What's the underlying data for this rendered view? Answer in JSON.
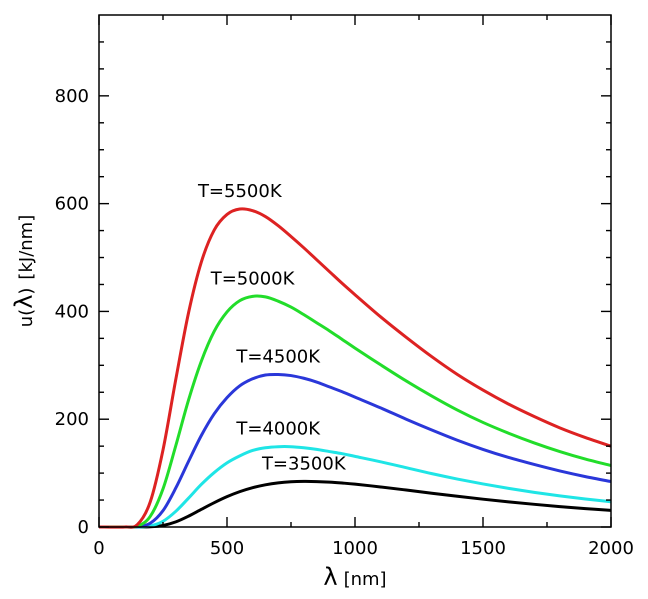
{
  "chart_data": {
    "type": "line",
    "title": "",
    "xlabel": {
      "symbol": "λ",
      "unit": "[nm]"
    },
    "ylabel": {
      "prefix": "u(",
      "symbol": "λ",
      "suffix": ")",
      "unit": "[kJ/nm]"
    },
    "xlim": [
      0,
      2000
    ],
    "ylim": [
      0,
      950
    ],
    "xticks": [
      0,
      500,
      1000,
      1500,
      2000
    ],
    "xtick_labels": [
      "0",
      "500",
      "1000",
      "1500",
      "2000"
    ],
    "yticks": [
      0,
      200,
      400,
      600,
      800
    ],
    "ytick_labels": [
      "0",
      "200",
      "400",
      "600",
      "800"
    ],
    "grid": false,
    "legend": "none",
    "x": [
      0,
      100,
      150,
      200,
      250,
      300,
      350,
      400,
      450,
      500,
      550,
      600,
      650,
      700,
      750,
      800,
      850,
      900,
      950,
      1000,
      1100,
      1200,
      1300,
      1400,
      1500,
      1600,
      1700,
      1800,
      1900,
      2000
    ],
    "series": [
      {
        "label": "T=3500K",
        "color": "#000000",
        "label_at": [
          600,
          112
        ],
        "values": [
          0,
          0,
          0.01,
          0.39,
          2.84,
          9.51,
          20.2,
          32.8,
          45.1,
          56.3,
          65.6,
          72.9,
          78.3,
          81.9,
          83.9,
          84.6,
          84.3,
          83.3,
          81.6,
          79.5,
          74.3,
          68.6,
          62.7,
          57.0,
          51.6,
          46.6,
          42.1,
          37.9,
          34.2,
          30.9
        ]
      },
      {
        "label": "T=4000K",
        "color": "#1fe5e6",
        "label_at": [
          585,
          200
        ],
        "values": [
          0,
          0,
          0.07,
          1.96,
          10.6,
          29.1,
          53.7,
          79.1,
          101,
          119,
          132,
          142,
          147,
          149,
          149,
          147,
          144,
          140,
          136,
          131,
          121,
          110,
          99.0,
          89.0,
          79.9,
          71.7,
          64.3,
          57.8,
          52.0,
          46.9
        ]
      },
      {
        "label": "T=4500K",
        "color": "#2a37d9",
        "label_at": [
          647,
          335
        ],
        "values": [
          0,
          0,
          0.37,
          6.99,
          30.3,
          72.4,
          122,
          170,
          210,
          240,
          262,
          275,
          282,
          283,
          281,
          276,
          269,
          260,
          251,
          241,
          221,
          200,
          180,
          161,
          144,
          129,
          116,
          104,
          93.5,
          84.3
        ]
      },
      {
        "label": "T=5000K",
        "color": "#22dd2a",
        "label_at": [
          573,
          215
        ],
        "values": [
          0,
          0.01,
          1.43,
          19.6,
          70.7,
          151,
          236,
          308,
          363,
          399,
          420,
          428,
          427,
          419,
          408,
          394,
          379,
          364,
          348,
          332,
          301,
          271,
          243,
          217,
          194,
          174,
          156,
          140,
          126,
          114
        ]
      },
      {
        "label": "T=5500K",
        "color": "#dd2222",
        "label_at": [
          555,
          40
        ],
        "values": [
          0,
          0.05,
          4.52,
          46.3,
          143,
          274,
          398,
          492,
          551,
          580,
          590,
          587,
          576,
          559,
          539,
          518,
          496,
          474,
          452,
          431,
          390,
          352,
          316,
          283,
          254,
          228,
          205,
          184,
          166,
          150
        ]
      }
    ]
  }
}
